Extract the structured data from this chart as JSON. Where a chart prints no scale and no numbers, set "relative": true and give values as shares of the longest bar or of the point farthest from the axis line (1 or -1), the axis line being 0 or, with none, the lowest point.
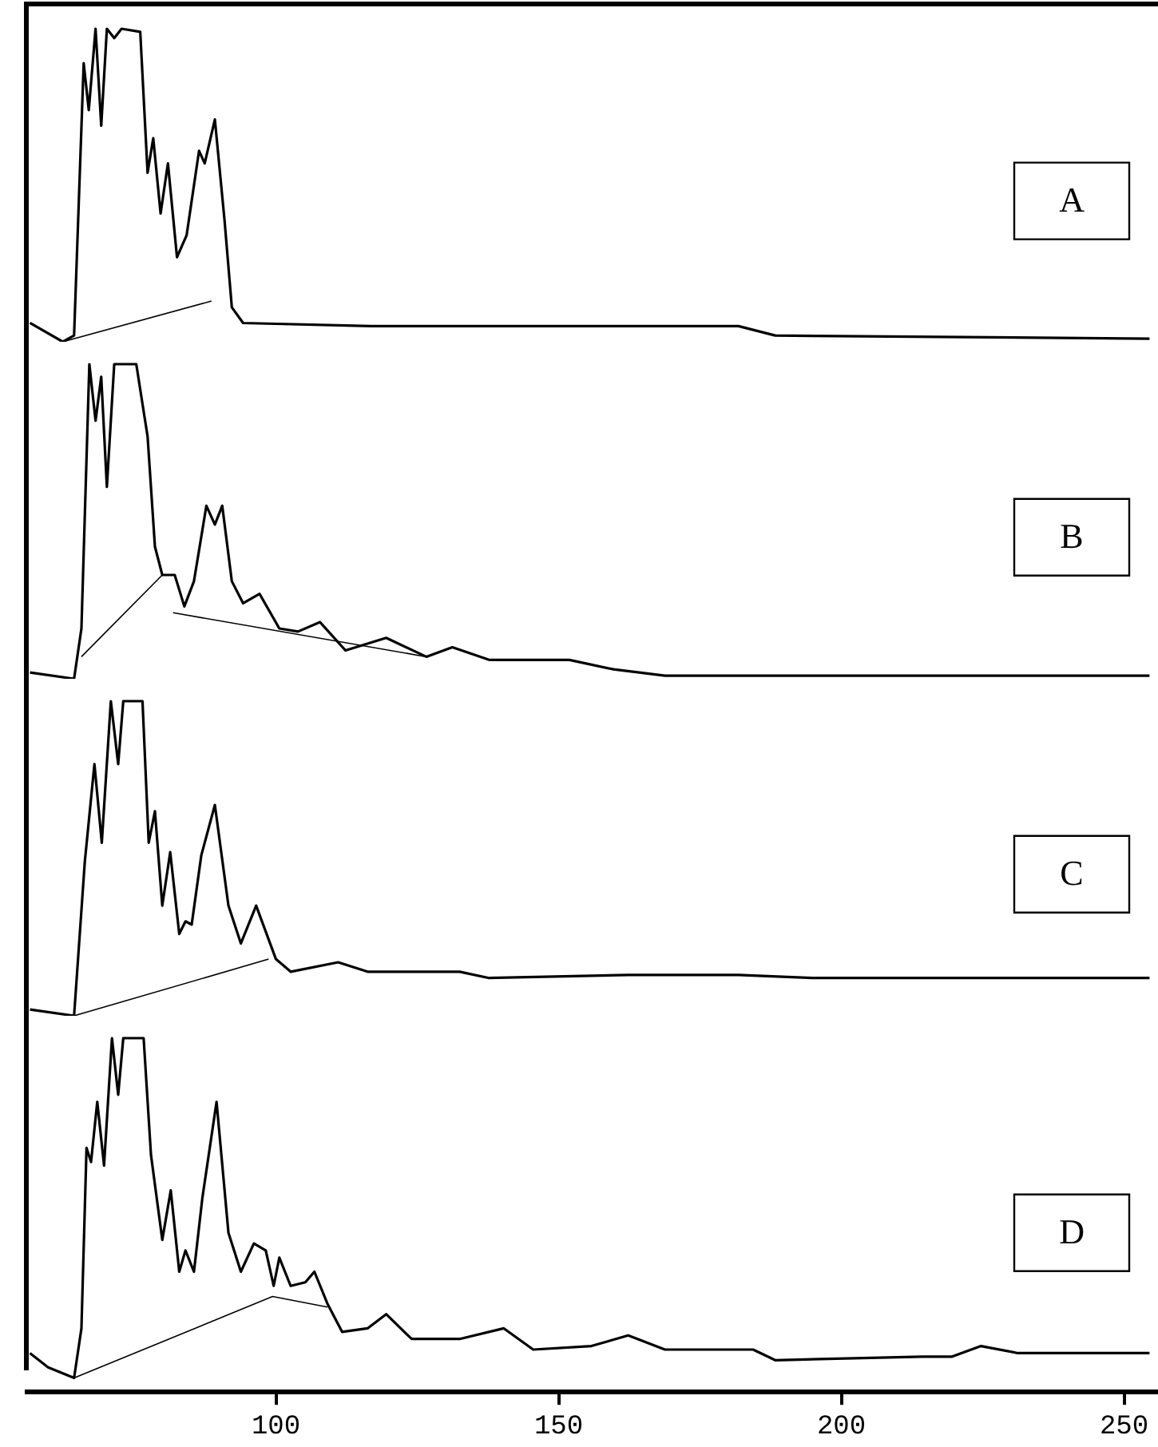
{
  "chart_data": [
    {
      "type": "line",
      "title": "A",
      "relative": true,
      "xlim": [
        56,
        256
      ],
      "tick_labels": false,
      "grid": false,
      "legend": false,
      "marker": "none",
      "series": [
        {
          "color": "#000000",
          "x": [
            56.5,
            62.3,
            64.3,
            66.0,
            66.9,
            68.1,
            69.1,
            70.1,
            71.4,
            72.7,
            76.0,
            77.3,
            78.3,
            79.6,
            80.9,
            82.5,
            84.2,
            86.4,
            87.4,
            89.2,
            90.9,
            92.2,
            94.2,
            116.9,
            181.8,
            188.3,
            254.5
          ],
          "values": [
            0.06,
            0,
            0.02,
            0.89,
            0.74,
            1,
            0.69,
            1,
            0.97,
            1,
            0.99,
            0.54,
            0.65,
            0.41,
            0.57,
            0.27,
            0.34,
            0.61,
            0.57,
            0.71,
            0.39,
            0.11,
            0.06,
            0.05,
            0.05,
            0.02,
            0.01
          ]
        },
        {
          "color": "#000000",
          "line_style": "solid",
          "x": [
            62.3,
            88.6
          ],
          "values": [
            0,
            0.13
          ]
        }
      ]
    },
    {
      "type": "line",
      "title": "B",
      "relative": true,
      "xlim": [
        56,
        256
      ],
      "tick_labels": false,
      "grid": false,
      "legend": false,
      "marker": "none",
      "series": [
        {
          "color": "#000000",
          "x": [
            56.5,
            64.3,
            65.6,
            67.0,
            68.1,
            69.1,
            70.1,
            71.4,
            75.3,
            77.3,
            78.6,
            79.9,
            82.1,
            83.8,
            85.5,
            87.7,
            89.2,
            90.5,
            92.2,
            94.2,
            97.1,
            100.6,
            103.9,
            107.8,
            112.3,
            119.5,
            126.6,
            131.2,
            137.7,
            151.9,
            159.7,
            168.8,
            194.8,
            254.5
          ],
          "values": [
            0.02,
            0,
            0.16,
            1,
            0.82,
            0.96,
            0.61,
            1,
            1,
            0.77,
            0.42,
            0.33,
            0.33,
            0.23,
            0.31,
            0.55,
            0.49,
            0.55,
            0.31,
            0.24,
            0.27,
            0.16,
            0.15,
            0.18,
            0.09,
            0.13,
            0.07,
            0.1,
            0.06,
            0.06,
            0.03,
            0.01,
            0.01,
            0.01
          ]
        },
        {
          "color": "#000000",
          "line_style": "solid",
          "x": [
            65.6,
            79.9,
            80.8,
            81.8,
            126.6
          ],
          "values": [
            0.07,
            0.33,
            null,
            0.21,
            0.07
          ]
        }
      ]
    },
    {
      "type": "line",
      "title": "C",
      "relative": true,
      "xlim": [
        56,
        256
      ],
      "tick_labels": false,
      "grid": false,
      "legend": false,
      "marker": "none",
      "series": [
        {
          "color": "#000000",
          "x": [
            56.5,
            64.3,
            66.2,
            67.9,
            69.2,
            70.8,
            72.1,
            73.0,
            76.4,
            77.5,
            78.6,
            79.9,
            81.3,
            82.9,
            84.0,
            85.1,
            86.8,
            89.2,
            91.6,
            93.8,
            96.5,
            100.0,
            102.6,
            111.0,
            116.2,
            132.5,
            137.7,
            162.3,
            181.8,
            194.8,
            254.5
          ],
          "values": [
            0.02,
            0,
            0.49,
            0.8,
            0.55,
            1,
            0.8,
            1,
            1,
            0.55,
            0.65,
            0.35,
            0.52,
            0.26,
            0.3,
            0.29,
            0.51,
            0.67,
            0.35,
            0.23,
            0.35,
            0.18,
            0.14,
            0.17,
            0.14,
            0.14,
            0.12,
            0.13,
            0.13,
            0.12,
            0.12
          ]
        },
        {
          "color": "#000000",
          "line_style": "solid",
          "x": [
            64.3,
            98.7
          ],
          "values": [
            0,
            0.18
          ]
        }
      ]
    },
    {
      "type": "line",
      "title": "D",
      "relative": true,
      "xlim": [
        56,
        256
      ],
      "xticks": [
        100,
        150,
        200,
        250
      ],
      "tick_labels": "x",
      "grid": false,
      "legend": false,
      "marker": "none",
      "series": [
        {
          "color": "#000000",
          "x": [
            56.5,
            59.7,
            64.3,
            65.6,
            66.5,
            67.3,
            68.4,
            69.6,
            71.0,
            72.1,
            73.0,
            76.6,
            77.9,
            79.9,
            81.4,
            82.9,
            84.0,
            85.5,
            87.0,
            89.5,
            91.6,
            93.8,
            96.1,
            98.2,
            99.6,
            100.6,
            102.6,
            105.2,
            106.8,
            109.1,
            111.7,
            116.2,
            119.5,
            124.0,
            132.5,
            140.3,
            145.5,
            155.8,
            162.3,
            168.8,
            184.4,
            188.3,
            214.3,
            219.5,
            224.7,
            231.2,
            254.5
          ],
          "values": [
            0.11,
            0.07,
            0.04,
            0.18,
            0.69,
            0.65,
            0.82,
            0.64,
            1,
            0.84,
            1,
            1,
            0.67,
            0.43,
            0.57,
            0.34,
            0.4,
            0.34,
            0.55,
            0.82,
            0.45,
            0.34,
            0.42,
            0.4,
            0.3,
            0.38,
            0.3,
            0.31,
            0.34,
            0.25,
            0.17,
            0.18,
            0.22,
            0.15,
            0.15,
            0.18,
            0.12,
            0.13,
            0.16,
            0.12,
            0.12,
            0.09,
            0.1,
            0.1,
            0.13,
            0.11,
            0.11
          ]
        },
        {
          "color": "#000000",
          "line_style": "solid",
          "x": [
            64.3,
            99.4,
            109.1
          ],
          "values": [
            0.04,
            0.27,
            0.24
          ]
        }
      ]
    }
  ]
}
